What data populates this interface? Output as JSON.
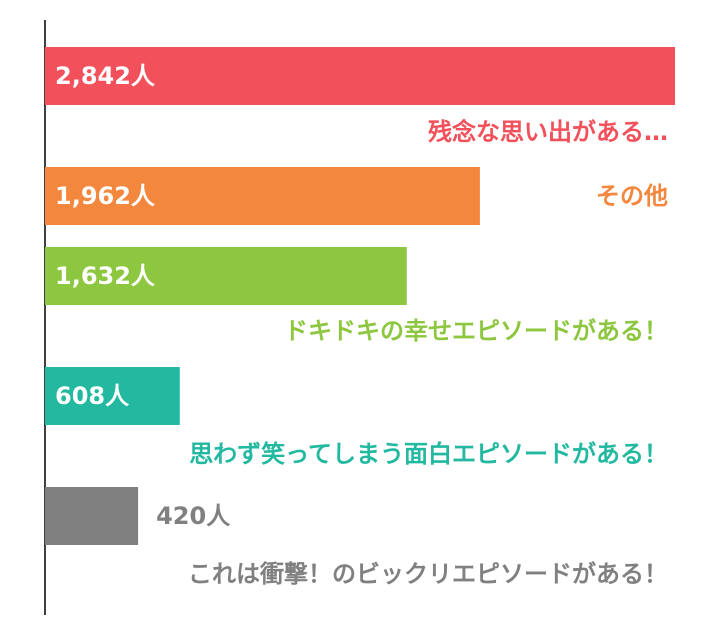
{
  "chart_data": {
    "type": "bar",
    "orientation": "horizontal",
    "categories": [
      "残念な思い出がある…",
      "その他",
      "ドキドキの幸せエピソードがある！",
      "思わず笑ってしまう面白エピソードがある！",
      "これは衝撃！のビックリエピソードがある！"
    ],
    "values": [
      2842,
      1962,
      1632,
      608,
      420
    ],
    "value_labels": [
      "2,842人",
      "1,962人",
      "1,632人",
      "608人",
      "420人"
    ],
    "colors": [
      "#f2505a",
      "#f4873e",
      "#8dc63f",
      "#22b9a0",
      "#808080"
    ]
  }
}
